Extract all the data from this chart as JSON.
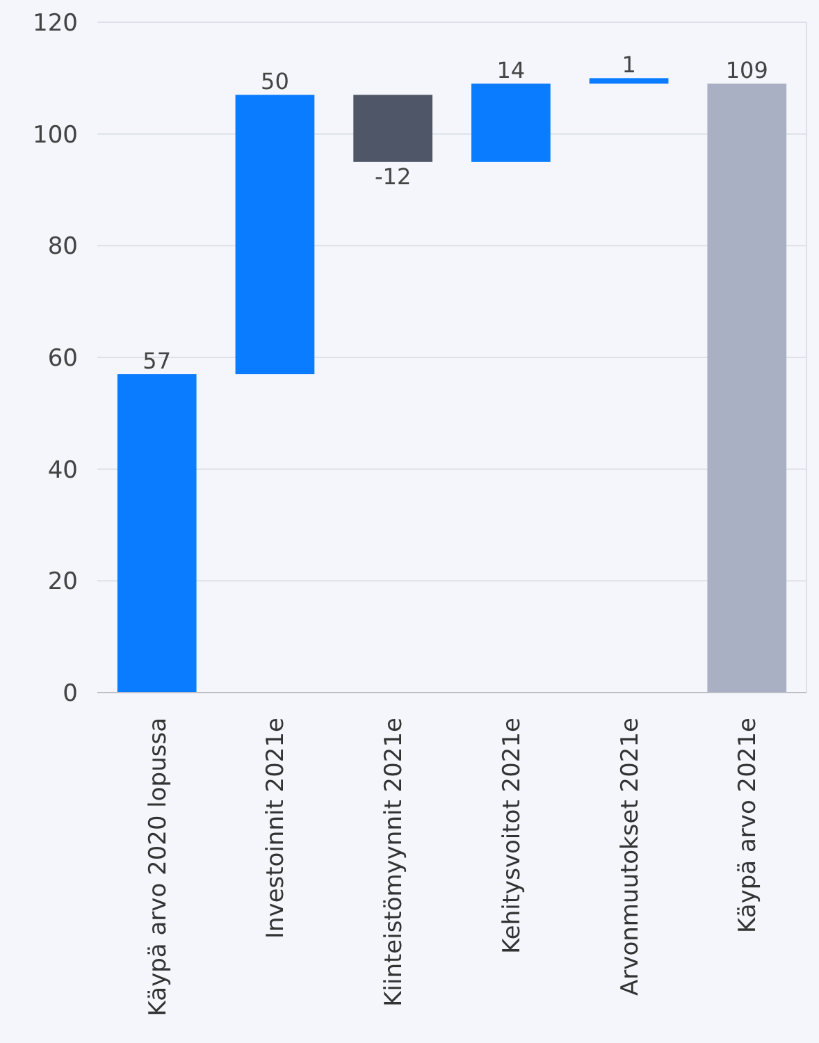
{
  "chart_data": {
    "type": "bar",
    "categories": [
      "Käypä arvo 2020 lopussa",
      "Investoinnit 2021e",
      "Kiinteistömyynnit 2021e",
      "Kehitysvoitot 2021e",
      "Arvonmuutokset 2021e",
      "Käypä arvo 2021e"
    ],
    "values": [
      57,
      50,
      -12,
      14,
      1,
      109
    ],
    "base": [
      0,
      57,
      107,
      95,
      109,
      0
    ],
    "colors": [
      "#0a7cff",
      "#0a7cff",
      "#4f5667",
      "#0a7cff",
      "#0a7cff",
      "#aab0c3"
    ],
    "ylim": [
      0,
      120
    ],
    "yticks": [
      0,
      20,
      40,
      60,
      80,
      100,
      120
    ],
    "grid": "y",
    "data_labels": true
  }
}
